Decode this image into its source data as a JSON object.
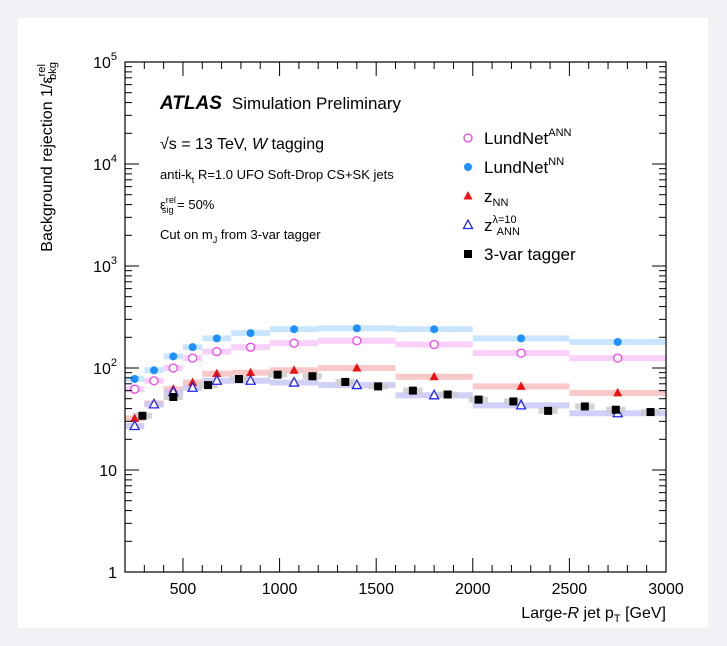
{
  "chart_data": {
    "type": "scatter",
    "xlabel": {
      "pre": "Large-",
      "italic": "R",
      "post": " jet p",
      "sub": "T",
      "unit": " [GeV]"
    },
    "ylabel": {
      "text": "Background rejection 1/ε",
      "sup": "rel",
      "sub": "bkg"
    },
    "xlim": [
      200,
      3000
    ],
    "ylim": [
      1,
      100000
    ],
    "yscale": "log",
    "x_ticks": [
      "500",
      "1000",
      "1500",
      "2000",
      "2500",
      "3000"
    ],
    "y_ticks": [
      {
        "base": "1",
        "exp": ""
      },
      {
        "base": "10",
        "exp": ""
      },
      {
        "base": "10",
        "exp": "2"
      },
      {
        "base": "10",
        "exp": "3"
      },
      {
        "base": "10",
        "exp": "4"
      },
      {
        "base": "10",
        "exp": "5"
      }
    ],
    "annotations": {
      "atlas": "ATLAS",
      "status": "Simulation Preliminary",
      "energy": {
        "sqrt": "√s",
        "rest": " = 13 TeV, ",
        "italic": "W",
        "tail": " tagging"
      },
      "jets": {
        "pre": "anti-k",
        "sub": "t",
        "post": " R=1.0 UFO Soft-Drop CS+SK jets"
      },
      "eff": {
        "pre": "ε",
        "sup": "rel",
        "sub": "sig",
        "post": " = 50%"
      },
      "cut": {
        "pre": "Cut on m",
        "sub": "J",
        "post": " from 3-var tagger"
      }
    },
    "legend_position": "top-right",
    "series": [
      {
        "key": "lundnet_ann",
        "legend": {
          "base": "LundNet",
          "sup": "ANN",
          "sub": ""
        },
        "color": "#ee44ee",
        "band": "#f8c8f8",
        "marker": "circle-open",
        "offset": 0,
        "points": [
          [
            250,
            62
          ],
          [
            350,
            75
          ],
          [
            450,
            100
          ],
          [
            550,
            125
          ],
          [
            675,
            145
          ],
          [
            850,
            160
          ],
          [
            1075,
            175
          ],
          [
            1400,
            185
          ],
          [
            1800,
            170
          ],
          [
            2250,
            140
          ],
          [
            2750,
            125
          ]
        ],
        "bins": [
          [
            200,
            300
          ],
          [
            300,
            400
          ],
          [
            400,
            500
          ],
          [
            500,
            600
          ],
          [
            600,
            750
          ],
          [
            750,
            950
          ],
          [
            950,
            1200
          ],
          [
            1200,
            1600
          ],
          [
            1600,
            2000
          ],
          [
            2000,
            2500
          ],
          [
            2500,
            3000
          ]
        ]
      },
      {
        "key": "lundnet_nn",
        "legend": {
          "base": "LundNet",
          "sup": "NN",
          "sub": ""
        },
        "color": "#1e90ff",
        "band": "#bfe0ff",
        "marker": "circle-filled",
        "offset": 0,
        "points": [
          [
            250,
            78
          ],
          [
            350,
            95
          ],
          [
            450,
            130
          ],
          [
            550,
            160
          ],
          [
            675,
            195
          ],
          [
            850,
            220
          ],
          [
            1075,
            240
          ],
          [
            1400,
            245
          ],
          [
            1800,
            240
          ],
          [
            2250,
            195
          ],
          [
            2750,
            180
          ]
        ],
        "bins": [
          [
            200,
            300
          ],
          [
            300,
            400
          ],
          [
            400,
            500
          ],
          [
            500,
            600
          ],
          [
            600,
            750
          ],
          [
            750,
            950
          ],
          [
            950,
            1200
          ],
          [
            1200,
            1600
          ],
          [
            1600,
            2000
          ],
          [
            2000,
            2500
          ],
          [
            2500,
            3000
          ]
        ]
      },
      {
        "key": "z_nn",
        "legend": {
          "base": "z",
          "sup": "",
          "sub": "NN"
        },
        "color": "#ee1111",
        "band": "#f8c0c0",
        "marker": "triangle-filled",
        "offset": 0,
        "points": [
          [
            250,
            32
          ],
          [
            350,
            45
          ],
          [
            450,
            62
          ],
          [
            550,
            72
          ],
          [
            675,
            88
          ],
          [
            850,
            90
          ],
          [
            1075,
            95
          ],
          [
            1400,
            100
          ],
          [
            1800,
            82
          ],
          [
            2250,
            66
          ],
          [
            2750,
            57
          ]
        ],
        "bins": [
          [
            200,
            300
          ],
          [
            300,
            400
          ],
          [
            400,
            500
          ],
          [
            500,
            600
          ],
          [
            600,
            750
          ],
          [
            750,
            950
          ],
          [
            950,
            1200
          ],
          [
            1200,
            1600
          ],
          [
            1600,
            2000
          ],
          [
            2000,
            2500
          ],
          [
            2500,
            3000
          ]
        ]
      },
      {
        "key": "z_ann",
        "legend": {
          "base": "z",
          "sup": "λ=10",
          "sub": "ANN"
        },
        "color": "#2222ee",
        "band": "#c8c8f8",
        "marker": "triangle-open",
        "offset": 0,
        "points": [
          [
            250,
            27
          ],
          [
            350,
            44
          ],
          [
            450,
            58
          ],
          [
            550,
            64
          ],
          [
            675,
            75
          ],
          [
            850,
            75
          ],
          [
            1075,
            72
          ],
          [
            1400,
            68
          ],
          [
            1800,
            54
          ],
          [
            2250,
            43
          ],
          [
            2750,
            36
          ]
        ],
        "bins": [
          [
            200,
            300
          ],
          [
            300,
            400
          ],
          [
            400,
            500
          ],
          [
            500,
            600
          ],
          [
            600,
            750
          ],
          [
            750,
            950
          ],
          [
            950,
            1200
          ],
          [
            1200,
            1600
          ],
          [
            1600,
            2000
          ],
          [
            2000,
            2500
          ],
          [
            2500,
            3000
          ]
        ]
      },
      {
        "key": "var3",
        "legend": {
          "base": "3-var tagger",
          "sup": "",
          "sub": ""
        },
        "color": "#000000",
        "band": "#cccccc",
        "marker": "square-filled",
        "offset": 0,
        "points": [
          [
            290,
            34
          ],
          [
            450,
            52
          ],
          [
            630,
            68
          ],
          [
            790,
            78
          ],
          [
            990,
            86
          ],
          [
            1170,
            83
          ],
          [
            1340,
            73
          ],
          [
            1510,
            66
          ],
          [
            1690,
            60
          ],
          [
            1870,
            55
          ],
          [
            2030,
            49
          ],
          [
            2210,
            47
          ],
          [
            2390,
            38
          ],
          [
            2580,
            42
          ],
          [
            2740,
            39
          ],
          [
            2920,
            37
          ]
        ],
        "bins": [
          [
            240,
            340
          ],
          [
            400,
            500
          ],
          [
            580,
            680
          ],
          [
            740,
            840
          ],
          [
            940,
            1040
          ],
          [
            1120,
            1220
          ],
          [
            1290,
            1390
          ],
          [
            1460,
            1560
          ],
          [
            1640,
            1740
          ],
          [
            1820,
            1920
          ],
          [
            1980,
            2080
          ],
          [
            2160,
            2260
          ],
          [
            2340,
            2440
          ],
          [
            2530,
            2630
          ],
          [
            2690,
            2790
          ],
          [
            2870,
            2970
          ]
        ]
      }
    ]
  }
}
